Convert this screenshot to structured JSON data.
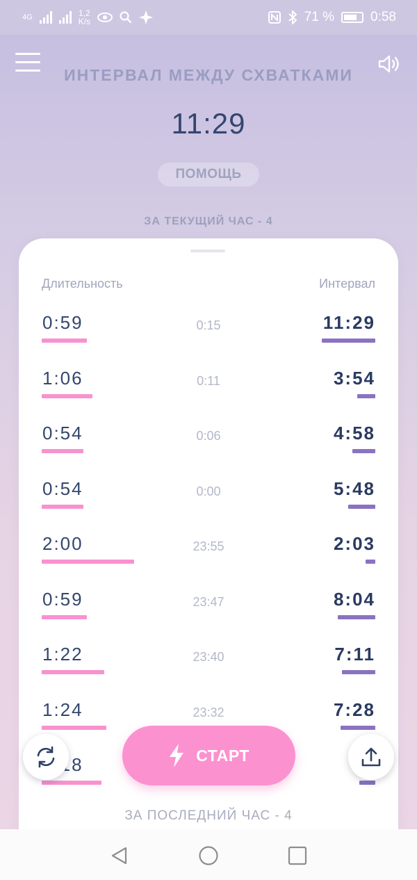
{
  "status_bar": {
    "network_type": "4G",
    "network_speed_value": "1,2",
    "network_speed_unit": "K/s",
    "battery_percent": "71 %",
    "time": "0:58",
    "icons": [
      "signal-icon",
      "signal-icon",
      "eye-icon",
      "search-icon",
      "sparkle-icon",
      "nfc-icon",
      "bluetooth-icon",
      "battery-icon"
    ]
  },
  "header": {
    "title": "ИНТЕРВАЛ МЕЖДУ СХВАТКАМИ",
    "current_interval": "11:29",
    "help_label": "ПОМОЩЬ",
    "current_hour_label": "ЗА ТЕКУЩИЙ ЧАС - 4",
    "menu_icon": "hamburger-icon",
    "sound_icon": "speaker-icon"
  },
  "table": {
    "col_duration": "Длительность",
    "col_interval": "Интервал",
    "rows": [
      {
        "duration": "0:59",
        "time": "0:15",
        "interval": "11:29",
        "duration_fraction": 0.49,
        "interval_fraction": 1.0
      },
      {
        "duration": "1:06",
        "time": "0:11",
        "interval": "3:54",
        "duration_fraction": 0.55,
        "interval_fraction": 0.34
      },
      {
        "duration": "0:54",
        "time": "0:06",
        "interval": "4:58",
        "duration_fraction": 0.45,
        "interval_fraction": 0.43
      },
      {
        "duration": "0:54",
        "time": "0:00",
        "interval": "5:48",
        "duration_fraction": 0.45,
        "interval_fraction": 0.5
      },
      {
        "duration": "2:00",
        "time": "23:55",
        "interval": "2:03",
        "duration_fraction": 1.0,
        "interval_fraction": 0.18
      },
      {
        "duration": "0:59",
        "time": "23:47",
        "interval": "8:04",
        "duration_fraction": 0.49,
        "interval_fraction": 0.7
      },
      {
        "duration": "1:22",
        "time": "23:40",
        "interval": "7:11",
        "duration_fraction": 0.68,
        "interval_fraction": 0.62
      },
      {
        "duration": "1:24",
        "time": "23:32",
        "interval": "7:28",
        "duration_fraction": 0.7,
        "interval_fraction": 0.65
      },
      {
        "duration": "1:18",
        "time": "",
        "interval": "3:",
        "duration_fraction": 0.65,
        "interval_fraction": 0.3
      }
    ]
  },
  "last_hour_label": "ЗА ПОСЛЕДНИЙ ЧАС - 4",
  "actions": {
    "start_label": "СТАРТ",
    "start_icon": "lightning-icon",
    "reset_icon": "refresh-icon",
    "share_icon": "upload-icon"
  },
  "nav": {
    "icons": [
      "back-icon",
      "home-icon",
      "recents-icon"
    ]
  },
  "colors": {
    "duration_bar": "#f892cf",
    "interval_bar": "#8a73c0",
    "start_button": "#fc91d0"
  }
}
